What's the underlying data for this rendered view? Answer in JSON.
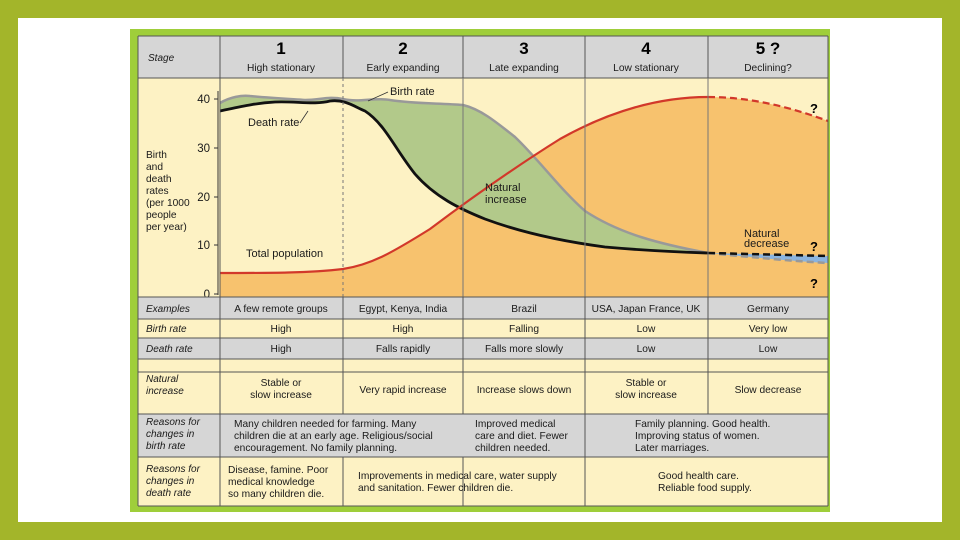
{
  "stage_label": "Stage",
  "stages": [
    {
      "num": "1",
      "name": "High stationary"
    },
    {
      "num": "2",
      "name": "Early expanding"
    },
    {
      "num": "3",
      "name": "Late expanding"
    },
    {
      "num": "4",
      "name": "Low stationary"
    },
    {
      "num": "5 ?",
      "name": "Declining?"
    }
  ],
  "y_axis": {
    "label_lines": [
      "Birth",
      "and",
      "death",
      "rates",
      "(per 1000",
      "people",
      "per year)"
    ],
    "ticks": [
      "40",
      "30",
      "20",
      "10",
      "0"
    ]
  },
  "annotations": {
    "birth_rate": "Birth rate",
    "death_rate": "Death rate",
    "natural_increase": [
      "Natural",
      "increase"
    ],
    "natural_decrease": [
      "Natural",
      "decrease"
    ],
    "total_population": "Total population",
    "question": "?"
  },
  "table": {
    "examples": {
      "label": "Examples",
      "cells": [
        "A few remote groups",
        "Egypt, Kenya, India",
        "Brazil",
        "USA, Japan France, UK",
        "Germany"
      ]
    },
    "birth_rate": {
      "label": "Birth rate",
      "cells": [
        "High",
        "High",
        "Falling",
        "Low",
        "Very low"
      ]
    },
    "death_rate": {
      "label": "Death rate",
      "cells": [
        "High",
        "Falls rapidly",
        "Falls more slowly",
        "Low",
        "Low"
      ]
    },
    "natural_increase": {
      "label": [
        "Natural",
        "increase"
      ],
      "cells": [
        [
          "Stable or",
          "slow increase"
        ],
        [
          "Very rapid increase"
        ],
        [
          "Increase slows down"
        ],
        [
          "Stable or",
          "slow increase"
        ],
        [
          "Slow decrease"
        ]
      ]
    },
    "reasons_birth": {
      "label": [
        "Reasons for",
        "changes in",
        "birth rate"
      ],
      "cells": [
        [
          "Many children needed for farming. Many",
          "children die at an early age. Religious/social",
          "encouragement. No family planning."
        ],
        [
          "Improved medical",
          "care and diet. Fewer",
          "children needed."
        ],
        [
          "Family planning. Good health.",
          "Improving status of women.",
          "Later marriages."
        ]
      ]
    },
    "reasons_death": {
      "label": [
        "Reasons for",
        "changes in",
        "death rate"
      ],
      "cells": [
        [
          "Disease, famine. Poor",
          "medical knowledge",
          "so many children die."
        ],
        [
          "Improvements in medical care, water supply",
          "and sanitation. Fewer children die."
        ],
        [
          "Good health care.",
          "Reliable food supply."
        ]
      ]
    }
  },
  "colors": {
    "frame_green": "#a3b52a",
    "panel_green": "#9fce3a",
    "cream": "#fdf2c4",
    "grey_header": "#d6d6d6",
    "population_fill": "#f7c26e",
    "natural_increase_fill": "#b2c98a",
    "natural_decrease_fill": "#8ab4e0",
    "birth_line": "#999999",
    "death_line": "#111111",
    "population_line": "#d2382a"
  }
}
